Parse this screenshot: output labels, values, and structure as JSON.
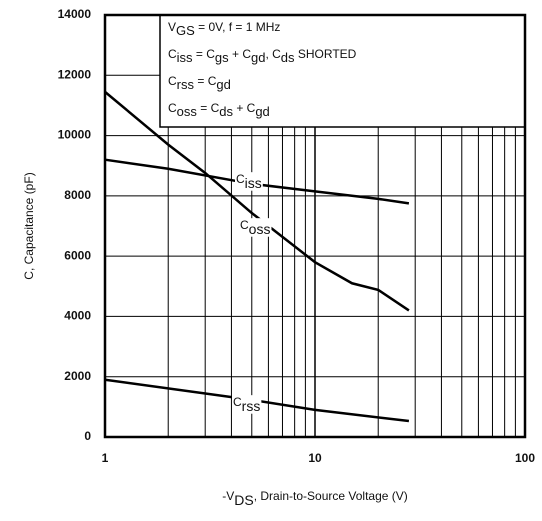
{
  "chart_data": {
    "type": "line",
    "annotations": [
      [
        "V",
        "GS",
        " = 0V,      f = 1 MHz"
      ],
      [
        "C",
        "iss",
        " = C",
        "gs",
        " + C",
        "gd",
        ",  C",
        "ds",
        " SHORTED"
      ],
      [
        "C",
        "rss",
        " = C",
        "gd"
      ],
      [
        "C",
        "oss",
        " = C",
        "ds",
        " + C",
        "gd"
      ]
    ],
    "xlabel": [
      "-V",
      "DS",
      ", Drain-to-Source Voltage (V)"
    ],
    "ylabel": "C, Capacitance (pF)",
    "xscale": "log",
    "xlim": [
      1,
      100
    ],
    "xticks": [
      1,
      10,
      100
    ],
    "xgrid": [
      2,
      3,
      4,
      5,
      6,
      7,
      8,
      9,
      20,
      30,
      40,
      50,
      60,
      70,
      80,
      90
    ],
    "ylim": [
      0,
      14000
    ],
    "yticks": [
      0,
      2000,
      4000,
      6000,
      8000,
      10000,
      12000,
      14000
    ],
    "grid": true,
    "series": [
      {
        "name": [
          "C",
          "iss"
        ],
        "color": "#000000",
        "x": [
          1,
          2,
          5,
          10,
          20,
          28
        ],
        "values": [
          9200,
          8900,
          8400,
          8150,
          7900,
          7750
        ]
      },
      {
        "name": [
          "C",
          "oss"
        ],
        "color": "#000000",
        "x": [
          1,
          2,
          3,
          5,
          10,
          15,
          20,
          28
        ],
        "values": [
          11450,
          9700,
          8760,
          7430,
          5800,
          5100,
          4880,
          4200
        ]
      },
      {
        "name": [
          "C",
          "rss"
        ],
        "color": "#000000",
        "x": [
          1,
          5,
          10,
          28
        ],
        "values": [
          1900,
          1230,
          900,
          530
        ]
      }
    ]
  }
}
